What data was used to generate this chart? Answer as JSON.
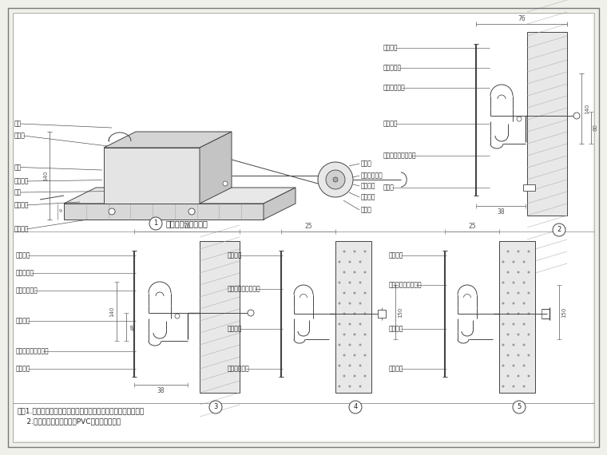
{
  "background_color": "#ffffff",
  "bg_outer": "#f0f0ea",
  "border_color": "#555555",
  "line_color": "#444444",
  "dim_color": "#555555",
  "text_color": "#222222",
  "notes_line1": "注：1.各种扟手护角均有成品配套的阴阳转角，应注意对应选择。",
  "notes_line2": "    2.扟手面板可选用硬塑料PVC或乙烯塑料等。",
  "diagram1_title": "缓冲扟手施工示意图",
  "label_luoding": "螺钉",
  "label_neijiao": "内置角",
  "label_xiegao": "楔杆",
  "label_duankou": "端口盖尽",
  "label_tiemao": "铁帽",
  "label_xiqiang": "系墙螺栌",
  "label_fushou": "扟手面板",
  "label_chuosuoding": "垂锁钉",
  "label_jinshu_zc": "金属支座中距",
  "label_lv_henggan": "铝制横杆",
  "label_yixi_rd": "乙烯软垂",
  "label_waijiao": "外置角",
  "label_fusbpb": "扟手面板",
  "label_qianei": "嵌内装饰物",
  "label_jszjl": "金属支座中距",
  "label_yixirvd2": "乙烯软垂",
  "label_lvcx": "铝型材支架（成品）",
  "label_gudtao": "固定套",
  "label_fusbpb3": "扟手面板",
  "label_csdl3": "彩色点缀带",
  "label_jszjl3": "金属支座中距",
  "label_yixi3": "乙烯软垂",
  "label_lvcx3": "铝型材支架（成品）",
  "label_xiqiang3": "系墙螺栌",
  "label_fusbpb4": "扟手面板",
  "label_lvcx4": "铝型材支架（成品）",
  "label_yixi4": "乙烯软垂",
  "label_jpms4": "金属膨胀螺栌",
  "label_fusbpb5": "扟手面板",
  "label_lvcx5": "铝型材支架（成品）",
  "label_yixi5": "乙烯软垂",
  "label_xiqiang5": "系墙螺栌"
}
